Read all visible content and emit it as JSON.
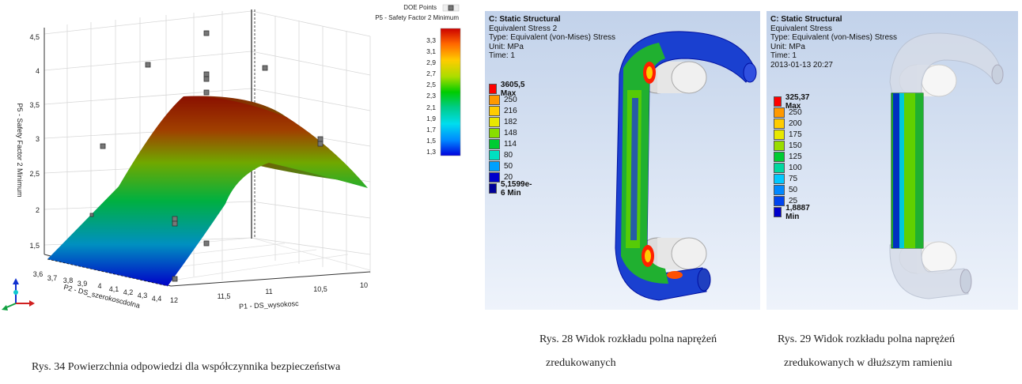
{
  "surface_plot": {
    "legend_doe": "DOE Points",
    "legend_response": "P5 - Safety Factor 2 Minimum",
    "z_axis_label": "P5 - Safety Factor 2 Minimum",
    "z_ticks": [
      "4,5",
      "4",
      "3,5",
      "3",
      "2,5",
      "2",
      "1,5"
    ],
    "x_axis_label": "P2 - DS_szerokoscdolna",
    "x_ticks": [
      "3,6",
      "3,7",
      "3,8",
      "3,9",
      "4",
      "4,1",
      "4,2",
      "4,3",
      "4,4"
    ],
    "y_axis_label": "P1 - DS_wysokosc",
    "y_ticks": [
      "12",
      "11,5",
      "11",
      "10,5",
      "10"
    ],
    "colorbar_ticks": [
      "3,3",
      "3,1",
      "2,9",
      "2,7",
      "2,5",
      "2,3",
      "2,1",
      "1,9",
      "1,7",
      "1,5",
      "1,3"
    ],
    "caption": "Rys. 34 Powierzchnia odpowiedzi dla współczynnika bezpieczeństwa"
  },
  "ansys_left": {
    "title": "C: Static Structural",
    "line2": "Equivalent Stress 2",
    "line3": "Type: Equivalent (von-Mises) Stress",
    "line4": "Unit: MPa",
    "line5": "Time: 1",
    "legend_max": "3605,5 Max",
    "legend_values": [
      "250",
      "216",
      "182",
      "148",
      "114",
      "80",
      "50",
      "20"
    ],
    "legend_min": "5,1599e-6 Min",
    "caption_line1": "Rys. 28 Widok rozkładu polna naprężeń",
    "caption_line2": "zredukowanych"
  },
  "ansys_right": {
    "title": "C: Static Structural",
    "line2": "Equivalent Stress",
    "line3": "Type: Equivalent (von-Mises) Stress",
    "line4": "Unit: MPa",
    "line5": "Time: 1",
    "line6": "2013-01-13 20:27",
    "legend_max": "325,37 Max",
    "legend_values": [
      "250",
      "200",
      "175",
      "150",
      "125",
      "100",
      "75",
      "50",
      "25"
    ],
    "legend_min": "1,8887 Min",
    "caption_line1": "Rys. 29 Widok rozkładu polna naprężeń",
    "caption_line2": "zredukowanych w dłuższym ramieniu"
  },
  "colors": {
    "left_legend": [
      "#ff0000",
      "#ff9900",
      "#ffcc00",
      "#e8e800",
      "#88dd00",
      "#00cc33",
      "#00e0c0",
      "#00a0ff",
      "#0000cc"
    ],
    "right_legend": [
      "#ff0000",
      "#ff9900",
      "#ffcc00",
      "#e8e800",
      "#99dd00",
      "#00cc33",
      "#00d8a0",
      "#00c8ff",
      "#0088ff",
      "#0000cc"
    ]
  }
}
